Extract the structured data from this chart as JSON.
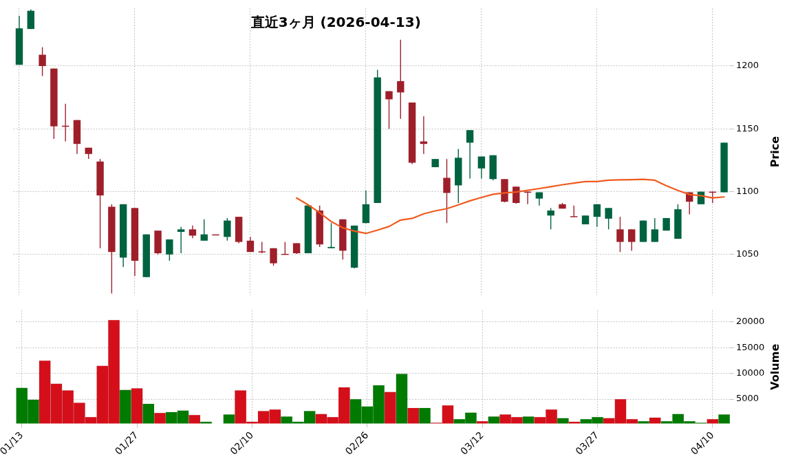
{
  "chart_data": [
    {
      "type": "candlestick",
      "title": "直近3ヶ月 (2026-04-13)",
      "ylabel": "Price",
      "ylim": [
        1017.5,
        1246
      ],
      "yticks": [
        1050,
        1100,
        1150,
        1200
      ],
      "grid": true,
      "tick_labels": "y",
      "categories": [
        null,
        null,
        null,
        null,
        null,
        null,
        null,
        null,
        null,
        null,
        null,
        null,
        null,
        null,
        null,
        null,
        null,
        null,
        null,
        null,
        null,
        null,
        null,
        null,
        null,
        null,
        null,
        null,
        null,
        null,
        null,
        null,
        null,
        null,
        null,
        null,
        null,
        null,
        null,
        null,
        null,
        null,
        null,
        null,
        null,
        null,
        null,
        null,
        null,
        null,
        null,
        null,
        null,
        null,
        null,
        null,
        null,
        null,
        null,
        null,
        null,
        null
      ],
      "ohlc": [
        [
          1201,
          1240,
          1201,
          1230
        ],
        [
          1229.5,
          1245,
          1229.5,
          1244
        ],
        [
          1209,
          1215,
          1192,
          1200
        ],
        [
          1198,
          1198,
          1142,
          1152
        ],
        [
          1152.5,
          1170,
          1140,
          1152
        ],
        [
          1157,
          1157,
          1130,
          1138
        ],
        [
          1135,
          1135,
          1126,
          1130
        ],
        [
          1124,
          1126,
          1055,
          1097
        ],
        [
          1088,
          1090,
          1019,
          1052
        ],
        [
          1047.5,
          1090,
          1040,
          1090
        ],
        [
          1087,
          1087,
          1033,
          1045
        ],
        [
          1032,
          1066,
          1032,
          1066
        ],
        [
          1069,
          1069,
          1050,
          1051
        ],
        [
          1050,
          1062,
          1045,
          1062
        ],
        [
          1068,
          1072,
          1051,
          1070
        ],
        [
          1070,
          1073,
          1063,
          1065
        ],
        [
          1061,
          1078,
          1061,
          1066
        ],
        [
          1066,
          1066,
          1066,
          1066
        ],
        [
          1064,
          1079,
          1061,
          1077
        ],
        [
          1080,
          1080,
          1059,
          1060
        ],
        [
          1061,
          1064,
          1052,
          1052
        ],
        [
          1052.5,
          1060,
          1051,
          1052
        ],
        [
          1055,
          1055,
          1041,
          1043
        ],
        [
          1050.5,
          1060,
          1050,
          1050
        ],
        [
          1059,
          1059,
          1050.5,
          1051
        ],
        [
          1051,
          1089,
          1051,
          1089
        ],
        [
          1085,
          1089,
          1056,
          1058
        ],
        [
          1055,
          1075,
          1055,
          1056
        ],
        [
          1078,
          1078,
          1046,
          1053
        ],
        [
          1039.5,
          1073,
          1039,
          1073
        ],
        [
          1075,
          1101,
          1075,
          1090
        ],
        [
          1091,
          1197,
          1091,
          1191
        ],
        [
          1180,
          1180,
          1150,
          1173.5
        ],
        [
          1188,
          1221,
          1158,
          1179
        ],
        [
          1171,
          1171,
          1122,
          1123
        ],
        [
          1140,
          1160,
          1130,
          1138
        ],
        [
          1119.5,
          1126,
          1119.5,
          1126
        ],
        [
          1111,
          1126,
          1075,
          1099
        ],
        [
          1105,
          1134,
          1091,
          1127
        ],
        [
          1139,
          1149,
          1110.5,
          1149
        ],
        [
          1118.5,
          1128,
          1110.5,
          1128
        ],
        [
          1110,
          1129,
          1109,
          1129
        ],
        [
          1110,
          1110,
          1091.5,
          1092
        ],
        [
          1104,
          1104,
          1090.5,
          1091
        ],
        [
          1100,
          1100,
          1090,
          1099.5
        ],
        [
          1094.5,
          1099.5,
          1089,
          1099.5
        ],
        [
          1081,
          1087,
          1070,
          1085
        ],
        [
          1090,
          1091,
          1086.5,
          1086.5
        ],
        [
          1080.5,
          1089,
          1080,
          1080
        ],
        [
          1074,
          1081,
          1074,
          1081
        ],
        [
          1080,
          1090,
          1072,
          1090
        ],
        [
          1078.5,
          1087,
          1070,
          1087
        ],
        [
          1070,
          1080,
          1052,
          1060
        ],
        [
          1070,
          1070,
          1053,
          1060
        ],
        [
          1060,
          1077,
          1060,
          1077
        ],
        [
          1060,
          1079,
          1060,
          1070
        ],
        [
          1069,
          1079,
          1069,
          1079
        ],
        [
          1062.5,
          1090,
          1062.5,
          1086
        ],
        [
          1099.5,
          1099.5,
          1082,
          1092
        ],
        [
          1090,
          1100,
          1090,
          1100
        ],
        [
          1100,
          1100,
          1091,
          1099.5
        ],
        [
          1099.5,
          1139,
          1099.5,
          1139
        ]
      ],
      "colors": [
        "#006340",
        "#006340",
        "#9e1f2a",
        "#9e1f2a",
        "#9e1f2a",
        "#9e1f2a",
        "#9e1f2a",
        "#9e1f2a",
        "#9e1f2a",
        "#006340",
        "#9e1f2a",
        "#006340",
        "#9e1f2a",
        "#006340",
        "#006340",
        "#9e1f2a",
        "#006340",
        "#9e1f2a",
        "#006340",
        "#9e1f2a",
        "#9e1f2a",
        "#9e1f2a",
        "#9e1f2a",
        "#9e1f2a",
        "#9e1f2a",
        "#006340",
        "#9e1f2a",
        "#006340",
        "#9e1f2a",
        "#006340",
        "#006340",
        "#006340",
        "#9e1f2a",
        "#9e1f2a",
        "#9e1f2a",
        "#9e1f2a",
        "#006340",
        "#9e1f2a",
        "#006340",
        "#006340",
        "#006340",
        "#006340",
        "#9e1f2a",
        "#9e1f2a",
        "#9e1f2a",
        "#006340",
        "#006340",
        "#9e1f2a",
        "#9e1f2a",
        "#006340",
        "#006340",
        "#006340",
        "#9e1f2a",
        "#9e1f2a",
        "#006340",
        "#006340",
        "#006340",
        "#006340",
        "#9e1f2a",
        "#006340",
        "#9e1f2a",
        "#006340"
      ],
      "series": [
        {
          "type": "line",
          "color": "#f05a1e",
          "values": [
            null,
            null,
            null,
            null,
            null,
            null,
            null,
            null,
            null,
            null,
            null,
            null,
            null,
            null,
            null,
            null,
            null,
            null,
            null,
            null,
            null,
            null,
            null,
            null,
            1095,
            1089.5,
            1083.3,
            1076.2,
            1071.2,
            1068.6,
            1066.8,
            1069.4,
            1072.3,
            1077.4,
            1078.7,
            1082.4,
            1084.7,
            1086.5,
            1089.5,
            1092.7,
            1095.4,
            1097.9,
            1099,
            1099.7,
            1101.1,
            1102.5,
            1103.9,
            1105.5,
            1106.8,
            1108,
            1108,
            1109.1,
            1109.4,
            1109.6,
            1109.8,
            1109.1,
            1104.7,
            1101,
            1097.8,
            1096.8,
            1095,
            1095.8
          ]
        }
      ]
    },
    {
      "type": "bar",
      "ylabel": "Volume",
      "ylim": [
        240,
        22300
      ],
      "yticks": [
        5000,
        10000,
        15000,
        20000
      ],
      "grid": true,
      "categories": [
        "01/13",
        null,
        null,
        null,
        null,
        null,
        null,
        null,
        null,
        null,
        "01/27",
        null,
        null,
        null,
        null,
        null,
        null,
        null,
        null,
        null,
        "02/10",
        null,
        null,
        null,
        null,
        null,
        null,
        null,
        null,
        null,
        "02/26",
        null,
        null,
        null,
        null,
        null,
        null,
        null,
        null,
        null,
        "03/12",
        null,
        null,
        null,
        null,
        null,
        null,
        null,
        null,
        null,
        "03/27",
        null,
        null,
        null,
        null,
        null,
        null,
        null,
        null,
        null,
        "04/10",
        null
      ],
      "values": [
        7200,
        4900,
        12500,
        8000,
        6700,
        4300,
        1500,
        11500,
        20400,
        6800,
        7100,
        4100,
        2300,
        2500,
        2800,
        1900,
        600,
        null,
        2000,
        6700,
        600,
        2700,
        3000,
        1600,
        600,
        2700,
        2100,
        1500,
        7300,
        5000,
        3600,
        7700,
        6400,
        9900,
        3300,
        3300,
        400,
        3800,
        1100,
        2400,
        700,
        1600,
        2000,
        1500,
        1600,
        1500,
        3000,
        1300,
        600,
        1100,
        1500,
        1300,
        5000,
        1100,
        700,
        1400,
        700,
        2100,
        700,
        400,
        1100,
        2000
      ],
      "colors": [
        "#007a00",
        "#007a00",
        "#d40f1a",
        "#d40f1a",
        "#d40f1a",
        "#d40f1a",
        "#d40f1a",
        "#d40f1a",
        "#d40f1a",
        "#007a00",
        "#d40f1a",
        "#007a00",
        "#d40f1a",
        "#007a00",
        "#007a00",
        "#d40f1a",
        "#007a00",
        "#d40f1a",
        "#007a00",
        "#d40f1a",
        "#d40f1a",
        "#d40f1a",
        "#d40f1a",
        "#007a00",
        "#007a00",
        "#007a00",
        "#d40f1a",
        "#d40f1a",
        "#d40f1a",
        "#007a00",
        "#007a00",
        "#007a00",
        "#d40f1a",
        "#007a00",
        "#d40f1a",
        "#007a00",
        "#d40f1a",
        "#d40f1a",
        "#007a00",
        "#007a00",
        "#d40f1a",
        "#007a00",
        "#d40f1a",
        "#d40f1a",
        "#007a00",
        "#d40f1a",
        "#d40f1a",
        "#007a00",
        "#d40f1a",
        "#007a00",
        "#007a00",
        "#d40f1a",
        "#d40f1a",
        "#d40f1a",
        "#007a00",
        "#d40f1a",
        "#007a00",
        "#007a00",
        "#007a00",
        "#007a00",
        "#d40f1a",
        "#007a00"
      ]
    }
  ]
}
